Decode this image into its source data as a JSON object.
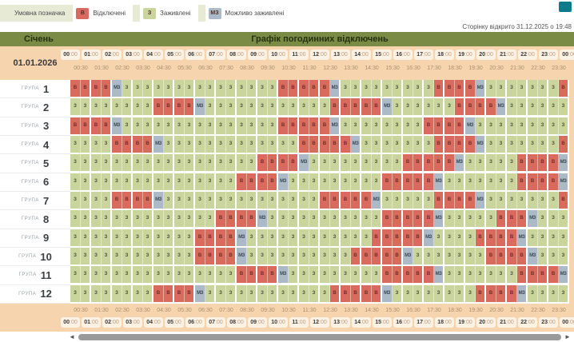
{
  "page": {
    "opened_text": "Сторінку відкрито 31.12.2025 о 19:48"
  },
  "legend": {
    "title": "Умовна позначка",
    "items": [
      {
        "key": "В",
        "label": "Відключені",
        "color": "#d9695f"
      },
      {
        "key": "З",
        "label": "Заживлені",
        "color": "#c9d59c"
      },
      {
        "key": "МЗ",
        "label": "Можливо заживлені",
        "color": "#abbac6"
      }
    ]
  },
  "header": {
    "month": "Січень",
    "title": "Графік погодинних відключень",
    "date": "01.01.2026"
  },
  "timeline": {
    "hours": [
      "00:00",
      "01:00",
      "02:00",
      "03:00",
      "04:00",
      "05:00",
      "06:00",
      "07:00",
      "08:00",
      "09:00",
      "10:00",
      "11:00",
      "12:00",
      "13:00",
      "14:00",
      "15:00",
      "16:00",
      "17:00",
      "18:00",
      "19:00",
      "20:00",
      "21:00",
      "22:00",
      "23:00",
      "00:00"
    ],
    "half_hours": [
      "00:30",
      "01:30",
      "02:30",
      "03:30",
      "04:30",
      "05:30",
      "06:30",
      "07:30",
      "08:30",
      "09:30",
      "10:30",
      "11:30",
      "12:30",
      "13:30",
      "14:30",
      "15:30",
      "16:30",
      "17:30",
      "18:30",
      "19:30",
      "20:30",
      "21:30",
      "22:30",
      "23:30"
    ]
  },
  "grid": {
    "group_prefix": "ГРУПА",
    "cell_types": {
      "B": {
        "label": "В",
        "color": "#d96a5e"
      },
      "Z": {
        "label": "З",
        "color": "#c9d59c"
      },
      "M": {
        "label": "МЗ",
        "color": "#abbac6"
      }
    },
    "groups": [
      {
        "number": "1",
        "cells": "BBBBMZZZZZZZZZZZZZZZBBBBBMZZZZZZZZZBBBBMZZZZZZZB"
      },
      {
        "number": "2",
        "cells": "ZZZZZZZZBBBBMZZZZZZZZZZZZBBBBBMZZZZZZBBBBMZZZZZZ"
      },
      {
        "number": "3",
        "cells": "BBBBMZZZZZZZZZZZZZZZBBBBBMZZZZZZZZBBBBMZZZZZZZZZ"
      },
      {
        "number": "4",
        "cells": "ZZZZBBBBMZZZZZZZZZZZZZBBBBBMZZZZZZZBBBBMZZZZZZZB"
      },
      {
        "number": "5",
        "cells": "ZZZZZZZZZZZZZZZZZZBBBBMZZZZZZZZZBBBBBMZZZZZBBBBM"
      },
      {
        "number": "6",
        "cells": "ZZZZZZZZZZZZZZZZBBBBMZZZZZZZZZBBBBBMZZZZZZZBBBBM"
      },
      {
        "number": "7",
        "cells": "ZZZZBBBBMZZZZZZZZZZZZZZZBBBBBMZZZZZBBBBMZZZZZZZB"
      },
      {
        "number": "8",
        "cells": "ZZZZZZZZZZZZZZBBBBMZZZZZZZZZZZBBBBBMZZZZZBBBMZZZ"
      },
      {
        "number": "9",
        "cells": "ZZZZZZZZZZZZBBBBMZZZZZZZZZZZZBBBBBMZZZZBBBBMZZZZ"
      },
      {
        "number": "10",
        "cells": "ZZZZZZZZZZZZBBBBMZZZZZZZZZZBBBBBMZZZZZZZBBBBMZZZ"
      },
      {
        "number": "11",
        "cells": "ZZZZZZZZZZZZZZZZBBBBMZZZZZZZZZBBBBBMZZZZZZZBBBBM"
      },
      {
        "number": "12",
        "cells": "ZZZZZZZZBBBBMZZZZZZZZZZZZBBBBBMZZZZZZZZBBBBMZZZZ"
      }
    ]
  },
  "scrollbar": {
    "left_arrow": "◄",
    "right_arrow": "►"
  },
  "colors": {
    "header_green": "#7a8b46",
    "peach": "#f6d5ae",
    "outage_red": "#d96a5e",
    "powered_green": "#c9d59c",
    "maybe_gray": "#abbac6",
    "legend_strip": "#e7ebd6",
    "teal_corner": "#0e7b8b",
    "scrollbar_thumb": "#9a9a9a"
  }
}
